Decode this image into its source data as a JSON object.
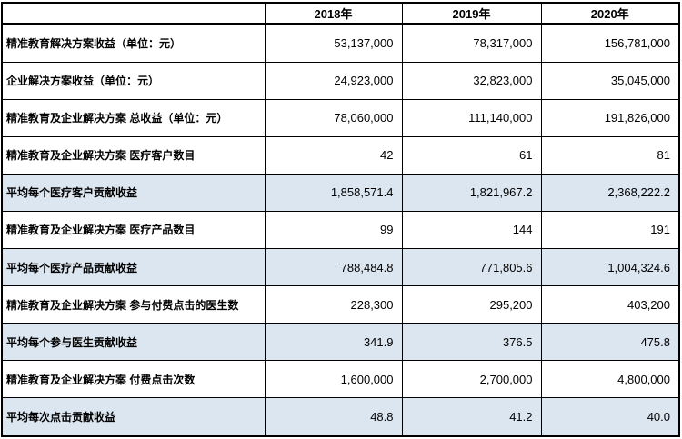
{
  "table": {
    "colors": {
      "shaded_row_background": "#dce6f1",
      "border": "#000000",
      "text": "#000000",
      "background": "#ffffff"
    },
    "columns": [
      "",
      "2018年",
      "2019年",
      "2020年"
    ],
    "rows": [
      {
        "label": "精准教育解决方案收益（单位：元）",
        "values": [
          "53,137,000",
          "78,317,000",
          "156,781,000"
        ],
        "shaded": false
      },
      {
        "label": "企业解决方案收益（单位：元）",
        "values": [
          "24,923,000",
          "32,823,000",
          "35,045,000"
        ],
        "shaded": false
      },
      {
        "label": "精准教育及企业解决方案 总收益（单位：元）",
        "values": [
          "78,060,000",
          "111,140,000",
          "191,826,000"
        ],
        "shaded": false
      },
      {
        "label": "精准教育及企业解决方案 医疗客户数目",
        "values": [
          "42",
          "61",
          "81"
        ],
        "shaded": false
      },
      {
        "label": "平均每个医疗客户贡献收益",
        "values": [
          "1,858,571.4",
          "1,821,967.2",
          "2,368,222.2"
        ],
        "shaded": true
      },
      {
        "label": "精准教育及企业解决方案 医疗产品数目",
        "values": [
          "99",
          "144",
          "191"
        ],
        "shaded": false
      },
      {
        "label": "平均每个医疗产品贡献收益",
        "values": [
          "788,484.8",
          "771,805.6",
          "1,004,324.6"
        ],
        "shaded": true
      },
      {
        "label": "精准教育及企业解决方案 参与付费点击的医生数",
        "values": [
          "228,300",
          "295,200",
          "403,200"
        ],
        "shaded": false
      },
      {
        "label": "平均每个参与医生贡献收益",
        "values": [
          "341.9",
          "376.5",
          "475.8"
        ],
        "shaded": true
      },
      {
        "label": "精准教育及企业解决方案 付费点击次数",
        "values": [
          "1,600,000",
          "2,700,000",
          "4,800,000"
        ],
        "shaded": false
      },
      {
        "label": "平均每次点击贡献收益",
        "values": [
          "48.8",
          "41.2",
          "40.0"
        ],
        "shaded": true
      }
    ]
  }
}
